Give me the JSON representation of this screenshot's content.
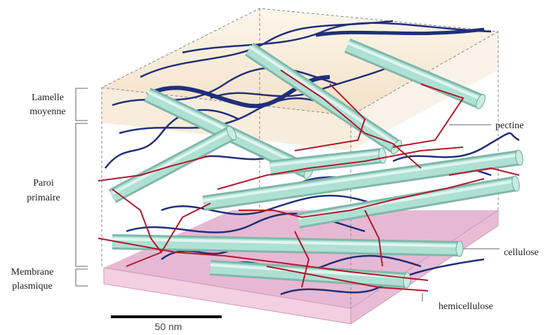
{
  "labels": {
    "lamelle": [
      "Lamelle",
      "moyenne"
    ],
    "paroi": [
      "Paroi",
      "primaire"
    ],
    "membrane": [
      "Membrane",
      "plasmique"
    ],
    "pectine": "pectine",
    "cellulose": "cellulose",
    "hemicellulose": "hemicellulose"
  },
  "scale_bar": "50 nm"
}
